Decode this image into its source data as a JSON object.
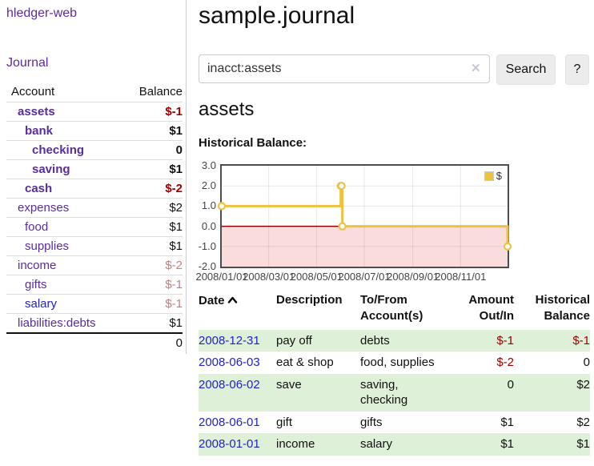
{
  "app": {
    "brand": "hledger-web",
    "nav_journal": "Journal"
  },
  "sidebar": {
    "header": {
      "account": "Account",
      "balance": "Balance"
    },
    "accounts": [
      {
        "name": "assets",
        "balance": "$-1"
      },
      {
        "name": "bank",
        "balance": "$1"
      },
      {
        "name": "checking",
        "balance": "0"
      },
      {
        "name": "saving",
        "balance": "$1"
      },
      {
        "name": "cash",
        "balance": "$-2"
      },
      {
        "name": "expenses",
        "balance": "$2"
      },
      {
        "name": "food",
        "balance": "$1"
      },
      {
        "name": "supplies",
        "balance": "$1"
      },
      {
        "name": "income",
        "balance": "$-2"
      },
      {
        "name": "gifts",
        "balance": "$-1"
      },
      {
        "name": "salary",
        "balance": "$-1"
      },
      {
        "name": "liabilities:debts",
        "balance": "$1"
      }
    ],
    "total": "0"
  },
  "header": {
    "title": "sample.journal"
  },
  "search": {
    "query": "inacct:assets",
    "clear_icon": "✕",
    "search_label": "Search",
    "help_label": "?"
  },
  "register": {
    "account_heading": "assets",
    "chart_label": "Historical Balance:"
  },
  "chart_data": {
    "type": "line",
    "title": "Historical Balance:",
    "step": true,
    "series": [
      {
        "name": "$",
        "color": "#edc240",
        "points": [
          {
            "x": "2008-01-01",
            "y": 1
          },
          {
            "x": "2008-06-01",
            "y": 2
          },
          {
            "x": "2008-06-02",
            "y": 2
          },
          {
            "x": "2008-06-03",
            "y": 0
          },
          {
            "x": "2008-12-31",
            "y": -1
          }
        ]
      }
    ],
    "xlim": [
      "2008-01-01",
      "2008-12-31"
    ],
    "ylim": [
      -2,
      3
    ],
    "x_ticks": [
      "2008/01/01",
      "2008/03/01",
      "2008/05/01",
      "2008/07/01",
      "2008/09/01",
      "2008/11/01"
    ],
    "y_ticks": [
      3.0,
      2.0,
      1.0,
      0.0,
      -1.0,
      -2.0
    ],
    "grid": true,
    "legend_position": "top-right",
    "negative_region_color": "#fbdcdc",
    "zero_line_color": "#8b0000",
    "grid_color": "rgba(0,0,0,0.09)"
  },
  "table": {
    "headers": {
      "date": "Date",
      "description": "Description",
      "accounts": "To/From Account(s)",
      "amount": "Amount Out/In",
      "balance": "Historical Balance"
    },
    "rows": [
      {
        "date": "2008-12-31",
        "description": "pay off",
        "accounts": "debts",
        "amount": "$-1",
        "balance": "$-1"
      },
      {
        "date": "2008-06-03",
        "description": "eat & shop",
        "accounts": "food, supplies",
        "amount": "$-2",
        "balance": "0"
      },
      {
        "date": "2008-06-02",
        "description": "save",
        "accounts": "saving,\nchecking",
        "amount": "0",
        "balance": "$2"
      },
      {
        "date": "2008-06-01",
        "description": "gift",
        "accounts": "gifts",
        "amount": "$1",
        "balance": "$2"
      },
      {
        "date": "2008-01-01",
        "description": "income",
        "accounts": "salary",
        "amount": "$1",
        "balance": "$1"
      }
    ]
  }
}
